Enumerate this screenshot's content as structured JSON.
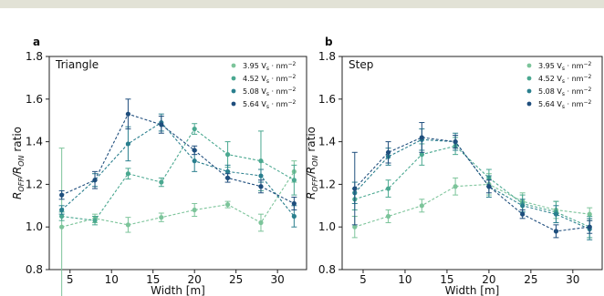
{
  "page": {
    "top_rule_color": "#e2e2d6"
  },
  "chart_data": [
    {
      "type": "line",
      "panel": "a",
      "title": "Triangle",
      "xlabel": "Width [m]",
      "ylabel_html": "R_OFF/R_ON ratio",
      "ylabel_parts": {
        "r1": "R",
        "s1": "OFF",
        "sep": "/R",
        "s2": "ON",
        "rest": " ratio"
      },
      "xlim": [
        2.5,
        33.5
      ],
      "ylim": [
        0.8,
        1.8
      ],
      "xticks": [
        5,
        10,
        15,
        20,
        25,
        30
      ],
      "yticks": [
        0.8,
        1.0,
        1.2,
        1.4,
        1.6,
        1.8
      ],
      "x": [
        4,
        8,
        12,
        16,
        20,
        24,
        28,
        32
      ],
      "legend_position": "top-right",
      "series": [
        {
          "name": "3.95 V",
          "label_main": "3.95 V",
          "label_sub": "s",
          "label_tail": " · nm",
          "label_sup": "−2",
          "color": "#7cc49a",
          "values": [
            1.0,
            1.04,
            1.01,
            1.045,
            1.08,
            1.105,
            1.02,
            1.26
          ],
          "errors": [
            0.37,
            0.02,
            0.035,
            0.02,
            0.03,
            0.015,
            0.04,
            0.05
          ]
        },
        {
          "name": "4.52 V",
          "label_main": "4.52 V",
          "label_sub": "s",
          "label_tail": " · nm",
          "label_sup": "−2",
          "color": "#4aa890",
          "values": [
            1.05,
            1.03,
            1.25,
            1.21,
            1.46,
            1.34,
            1.31,
            1.22
          ],
          "errors": [
            0.02,
            0.02,
            0.025,
            0.02,
            0.025,
            0.06,
            0.14,
            0.07
          ]
        },
        {
          "name": "5.08 V",
          "label_main": "5.08 V",
          "label_sub": "s",
          "label_tail": " · nm",
          "label_sup": "−2",
          "color": "#2a7f8e",
          "values": [
            1.08,
            1.22,
            1.39,
            1.49,
            1.31,
            1.26,
            1.24,
            1.05
          ],
          "errors": [
            0.02,
            0.03,
            0.08,
            0.04,
            0.05,
            0.03,
            0.03,
            0.05
          ]
        },
        {
          "name": "5.64 V",
          "label_main": "5.64 V",
          "label_sub": "s",
          "label_tail": " · nm",
          "label_sup": "−2",
          "color": "#1f4e7d",
          "values": [
            1.15,
            1.22,
            1.53,
            1.48,
            1.36,
            1.23,
            1.19,
            1.11
          ],
          "errors": [
            0.02,
            0.04,
            0.07,
            0.04,
            0.02,
            0.02,
            0.03,
            0.03
          ]
        }
      ]
    },
    {
      "type": "line",
      "panel": "b",
      "title": "Step",
      "xlabel": "Width [m]",
      "ylabel_html": "R_OFF/R_ON ratio",
      "ylabel_parts": {
        "r1": "R",
        "s1": "OFF",
        "sep": "/R",
        "s2": "ON",
        "rest": " ratio"
      },
      "xlim": [
        2.5,
        33.5
      ],
      "ylim": [
        0.8,
        1.8
      ],
      "xticks": [
        5,
        10,
        15,
        20,
        25,
        30
      ],
      "yticks": [
        0.8,
        1.0,
        1.2,
        1.4,
        1.6,
        1.8
      ],
      "x": [
        4,
        8,
        12,
        16,
        20,
        24,
        28,
        32
      ],
      "legend_position": "top-right",
      "series": [
        {
          "name": "3.95 V",
          "label_main": "3.95 V",
          "label_sub": "s",
          "label_tail": " · nm",
          "label_sup": "−2",
          "color": "#7cc49a",
          "values": [
            1.0,
            1.05,
            1.1,
            1.19,
            1.2,
            1.12,
            1.08,
            1.06
          ],
          "errors": [
            0.05,
            0.03,
            0.03,
            0.04,
            0.05,
            0.04,
            0.04,
            0.03
          ]
        },
        {
          "name": "4.52 V",
          "label_main": "4.52 V",
          "label_sub": "s",
          "label_tail": " · nm",
          "label_sup": "−2",
          "color": "#4aa890",
          "values": [
            1.13,
            1.18,
            1.34,
            1.38,
            1.23,
            1.11,
            1.07,
            1.0
          ],
          "errors": [
            0.05,
            0.04,
            0.05,
            0.04,
            0.04,
            0.04,
            0.05,
            0.05
          ]
        },
        {
          "name": "5.08 V",
          "label_main": "5.08 V",
          "label_sub": "s",
          "label_tail": " · nm",
          "label_sup": "−2",
          "color": "#2a7f8e",
          "values": [
            1.16,
            1.33,
            1.41,
            1.4,
            1.19,
            1.1,
            1.06,
            0.99
          ],
          "errors": [
            0.05,
            0.04,
            0.05,
            0.04,
            0.05,
            0.03,
            0.04,
            0.05
          ]
        },
        {
          "name": "5.64 V",
          "label_main": "5.64 V",
          "label_sub": "s",
          "label_tail": " · nm",
          "label_sup": "−2",
          "color": "#1f4e7d",
          "values": [
            1.18,
            1.35,
            1.42,
            1.4,
            1.19,
            1.06,
            0.98,
            1.0
          ],
          "errors": [
            0.17,
            0.05,
            0.07,
            0.03,
            0.03,
            0.02,
            0.03,
            0.03
          ]
        }
      ]
    }
  ]
}
